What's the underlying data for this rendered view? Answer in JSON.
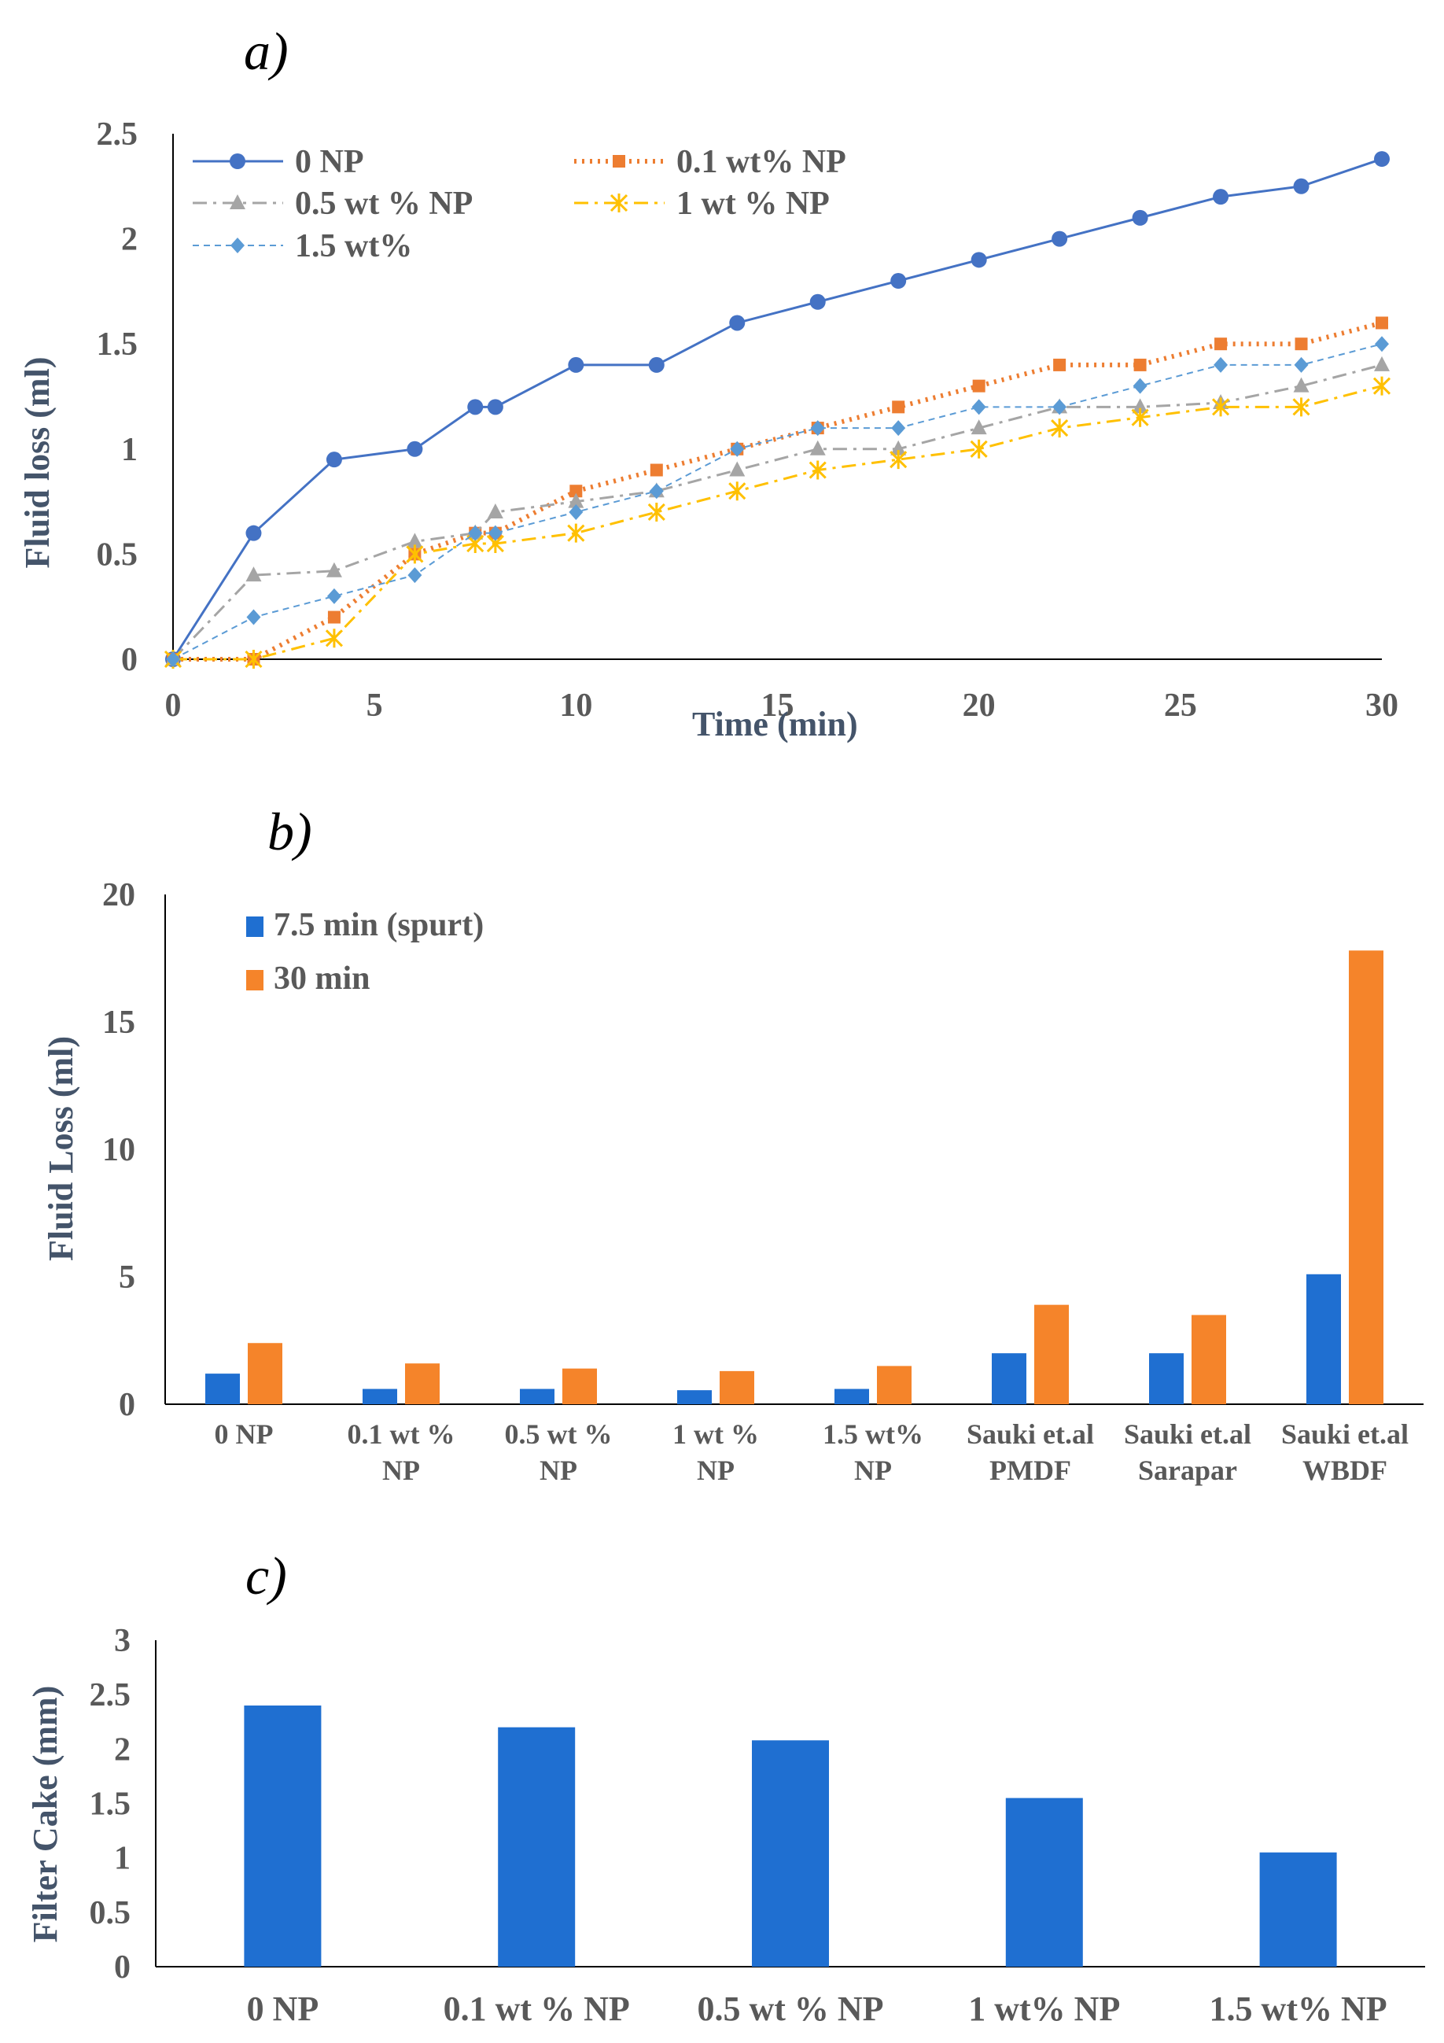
{
  "chart_data": [
    {
      "type": "line",
      "panel_label": "a)",
      "xlabel": "Time (min)",
      "ylabel": "Fluid loss (ml)",
      "xlim": [
        0,
        30
      ],
      "ylim": [
        0,
        2.5
      ],
      "x_ticks": [
        "0",
        "5",
        "10",
        "15",
        "20",
        "25",
        "30"
      ],
      "y_ticks": [
        "0",
        "0.5",
        "1",
        "1.5",
        "2",
        "2.5"
      ],
      "legend_position": "top-left",
      "series": [
        {
          "name": "0 NP",
          "color": "#4472c4",
          "marker": "circle",
          "style": "solid",
          "x": [
            0,
            2,
            4,
            6,
            7.5,
            8,
            10,
            12,
            14,
            16,
            18,
            20,
            22,
            24,
            26,
            28,
            30
          ],
          "y": [
            0,
            0.6,
            0.95,
            1.0,
            1.2,
            1.2,
            1.4,
            1.4,
            1.6,
            1.7,
            1.8,
            1.9,
            2.0,
            2.1,
            2.2,
            2.25,
            2.38
          ]
        },
        {
          "name": "0.1 wt% NP",
          "color": "#ed7d31",
          "marker": "square",
          "style": "dotted",
          "x": [
            0,
            2,
            4,
            6,
            7.5,
            8,
            10,
            12,
            14,
            16,
            18,
            20,
            22,
            24,
            26,
            28,
            30
          ],
          "y": [
            0,
            0,
            0.2,
            0.5,
            0.6,
            0.6,
            0.8,
            0.9,
            1.0,
            1.1,
            1.2,
            1.3,
            1.4,
            1.4,
            1.5,
            1.5,
            1.6
          ]
        },
        {
          "name": "0.5 wt % NP",
          "color": "#a5a5a5",
          "marker": "triangle",
          "style": "dashdot",
          "x": [
            0,
            2,
            4,
            6,
            7.5,
            8,
            10,
            12,
            14,
            16,
            18,
            20,
            22,
            24,
            26,
            28,
            30
          ],
          "y": [
            0,
            0.4,
            0.42,
            0.56,
            0.6,
            0.7,
            0.75,
            0.8,
            0.9,
            1.0,
            1.0,
            1.1,
            1.2,
            1.2,
            1.22,
            1.3,
            1.4
          ]
        },
        {
          "name": "1 wt % NP",
          "color": "#ffc000",
          "marker": "star",
          "style": "dashdot",
          "x": [
            0,
            2,
            4,
            6,
            7.5,
            8,
            10,
            12,
            14,
            16,
            18,
            20,
            22,
            24,
            26,
            28,
            30
          ],
          "y": [
            0,
            0,
            0.1,
            0.5,
            0.55,
            0.55,
            0.6,
            0.7,
            0.8,
            0.9,
            0.95,
            1.0,
            1.1,
            1.15,
            1.2,
            1.2,
            1.3
          ]
        },
        {
          "name": "1.5 wt%",
          "color": "#5b9bd5",
          "marker": "diamond",
          "style": "dashed",
          "x": [
            0,
            2,
            4,
            6,
            7.5,
            8,
            10,
            12,
            14,
            16,
            18,
            20,
            22,
            24,
            26,
            28,
            30
          ],
          "y": [
            0,
            0.2,
            0.3,
            0.4,
            0.6,
            0.6,
            0.7,
            0.8,
            1.0,
            1.1,
            1.1,
            1.2,
            1.2,
            1.3,
            1.4,
            1.4,
            1.5
          ]
        }
      ]
    },
    {
      "type": "bar",
      "panel_label": "b)",
      "xlabel": "",
      "ylabel": "Fluid Loss (ml)",
      "ylim": [
        0,
        20
      ],
      "y_ticks": [
        "0",
        "5",
        "10",
        "15",
        "20"
      ],
      "legend_position": "top-left",
      "categories": [
        [
          "0 NP"
        ],
        [
          "0.1 wt %",
          "NP"
        ],
        [
          "0.5 wt %",
          "NP"
        ],
        [
          "1 wt %",
          "NP"
        ],
        [
          "1.5 wt%",
          "NP"
        ],
        [
          "Sauki et.al",
          "PMDF"
        ],
        [
          "Sauki et.al",
          "Sarapar"
        ],
        [
          "Sauki et.al",
          "WBDF"
        ]
      ],
      "series": [
        {
          "name": "7.5 min (spurt)",
          "color": "#1f6fd1",
          "values": [
            1.2,
            0.6,
            0.6,
            0.55,
            0.6,
            2.0,
            2.0,
            5.1
          ]
        },
        {
          "name": "30 min",
          "color": "#f5842a",
          "values": [
            2.4,
            1.6,
            1.4,
            1.3,
            1.5,
            3.9,
            3.5,
            17.8
          ]
        }
      ]
    },
    {
      "type": "bar",
      "panel_label": "c)",
      "xlabel": "",
      "ylabel": "Filter Cake (mm)",
      "ylim": [
        0,
        3
      ],
      "y_ticks": [
        "0",
        "0.5",
        "1",
        "1.5",
        "2",
        "2.5",
        "3"
      ],
      "categories": [
        "0 NP",
        "0.1 wt % NP",
        "0.5 wt % NP",
        "1 wt% NP",
        "1.5 wt% NP"
      ],
      "series": [
        {
          "name": "Filter Cake",
          "color": "#1f6fd1",
          "values": [
            2.4,
            2.2,
            2.08,
            1.55,
            1.05
          ]
        }
      ]
    }
  ]
}
